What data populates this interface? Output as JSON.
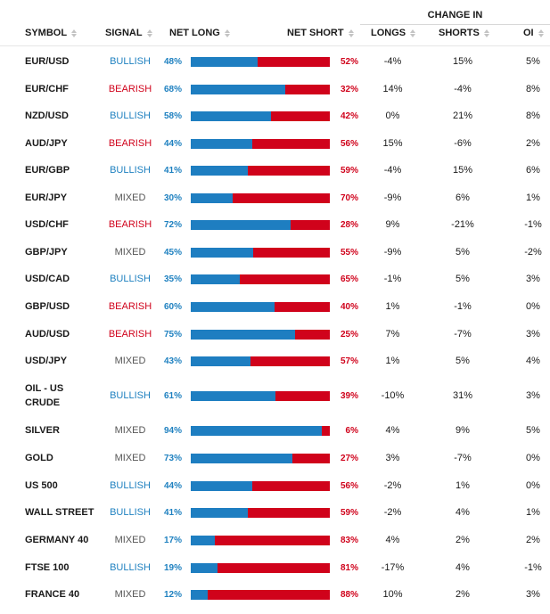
{
  "header": {
    "change_in": "CHANGE IN",
    "symbol": "SYMBOL",
    "signal": "SIGNAL",
    "net_long": "NET LONG",
    "net_short": "NET SHORT",
    "longs": "LONGS",
    "shorts": "SHORTS",
    "oi": "OI"
  },
  "colors": {
    "bullish": "#1f81c0",
    "bearish": "#d0021b",
    "mixed": "#555555",
    "long_bar": "#1e7ec1",
    "short_bar": "#d0021b"
  },
  "rows": [
    {
      "symbol": "EUR/USD",
      "signal": "BULLISH",
      "net_long": "48%",
      "net_short": "52%",
      "long_fraction": 0.48,
      "longs": "-4%",
      "shorts": "15%",
      "oi": "5%"
    },
    {
      "symbol": "EUR/CHF",
      "signal": "BEARISH",
      "net_long": "68%",
      "net_short": "32%",
      "long_fraction": 0.68,
      "longs": "14%",
      "shorts": "-4%",
      "oi": "8%"
    },
    {
      "symbol": "NZD/USD",
      "signal": "BULLISH",
      "net_long": "58%",
      "net_short": "42%",
      "long_fraction": 0.58,
      "longs": "0%",
      "shorts": "21%",
      "oi": "8%"
    },
    {
      "symbol": "AUD/JPY",
      "signal": "BEARISH",
      "net_long": "44%",
      "net_short": "56%",
      "long_fraction": 0.44,
      "longs": "15%",
      "shorts": "-6%",
      "oi": "2%"
    },
    {
      "symbol": "EUR/GBP",
      "signal": "BULLISH",
      "net_long": "41%",
      "net_short": "59%",
      "long_fraction": 0.41,
      "longs": "-4%",
      "shorts": "15%",
      "oi": "6%"
    },
    {
      "symbol": "EUR/JPY",
      "signal": "MIXED",
      "net_long": "30%",
      "net_short": "70%",
      "long_fraction": 0.3,
      "longs": "-9%",
      "shorts": "6%",
      "oi": "1%"
    },
    {
      "symbol": "USD/CHF",
      "signal": "BEARISH",
      "net_long": "72%",
      "net_short": "28%",
      "long_fraction": 0.72,
      "longs": "9%",
      "shorts": "-21%",
      "oi": "-1%"
    },
    {
      "symbol": "GBP/JPY",
      "signal": "MIXED",
      "net_long": "45%",
      "net_short": "55%",
      "long_fraction": 0.45,
      "longs": "-9%",
      "shorts": "5%",
      "oi": "-2%"
    },
    {
      "symbol": "USD/CAD",
      "signal": "BULLISH",
      "net_long": "35%",
      "net_short": "65%",
      "long_fraction": 0.35,
      "longs": "-1%",
      "shorts": "5%",
      "oi": "3%"
    },
    {
      "symbol": "GBP/USD",
      "signal": "BEARISH",
      "net_long": "60%",
      "net_short": "40%",
      "long_fraction": 0.6,
      "longs": "1%",
      "shorts": "-1%",
      "oi": "0%"
    },
    {
      "symbol": "AUD/USD",
      "signal": "BEARISH",
      "net_long": "75%",
      "net_short": "25%",
      "long_fraction": 0.75,
      "longs": "7%",
      "shorts": "-7%",
      "oi": "3%"
    },
    {
      "symbol": "USD/JPY",
      "signal": "MIXED",
      "net_long": "43%",
      "net_short": "57%",
      "long_fraction": 0.43,
      "longs": "1%",
      "shorts": "5%",
      "oi": "4%"
    },
    {
      "symbol": "OIL - US CRUDE",
      "signal": "BULLISH",
      "net_long": "61%",
      "net_short": "39%",
      "long_fraction": 0.61,
      "longs": "-10%",
      "shorts": "31%",
      "oi": "3%"
    },
    {
      "symbol": "SILVER",
      "signal": "MIXED",
      "net_long": "94%",
      "net_short": "6%",
      "long_fraction": 0.94,
      "longs": "4%",
      "shorts": "9%",
      "oi": "5%"
    },
    {
      "symbol": "GOLD",
      "signal": "MIXED",
      "net_long": "73%",
      "net_short": "27%",
      "long_fraction": 0.73,
      "longs": "3%",
      "shorts": "-7%",
      "oi": "0%"
    },
    {
      "symbol": "US 500",
      "signal": "BULLISH",
      "net_long": "44%",
      "net_short": "56%",
      "long_fraction": 0.44,
      "longs": "-2%",
      "shorts": "1%",
      "oi": "0%"
    },
    {
      "symbol": "WALL STREET",
      "signal": "BULLISH",
      "net_long": "41%",
      "net_short": "59%",
      "long_fraction": 0.41,
      "longs": "-2%",
      "shorts": "4%",
      "oi": "1%"
    },
    {
      "symbol": "GERMANY 40",
      "signal": "MIXED",
      "net_long": "17%",
      "net_short": "83%",
      "long_fraction": 0.17,
      "longs": "4%",
      "shorts": "2%",
      "oi": "2%"
    },
    {
      "symbol": "FTSE 100",
      "signal": "BULLISH",
      "net_long": "19%",
      "net_short": "81%",
      "long_fraction": 0.19,
      "longs": "-17%",
      "shorts": "4%",
      "oi": "-1%"
    },
    {
      "symbol": "FRANCE 40",
      "signal": "MIXED",
      "net_long": "12%",
      "net_short": "88%",
      "long_fraction": 0.12,
      "longs": "10%",
      "shorts": "2%",
      "oi": "3%"
    }
  ]
}
